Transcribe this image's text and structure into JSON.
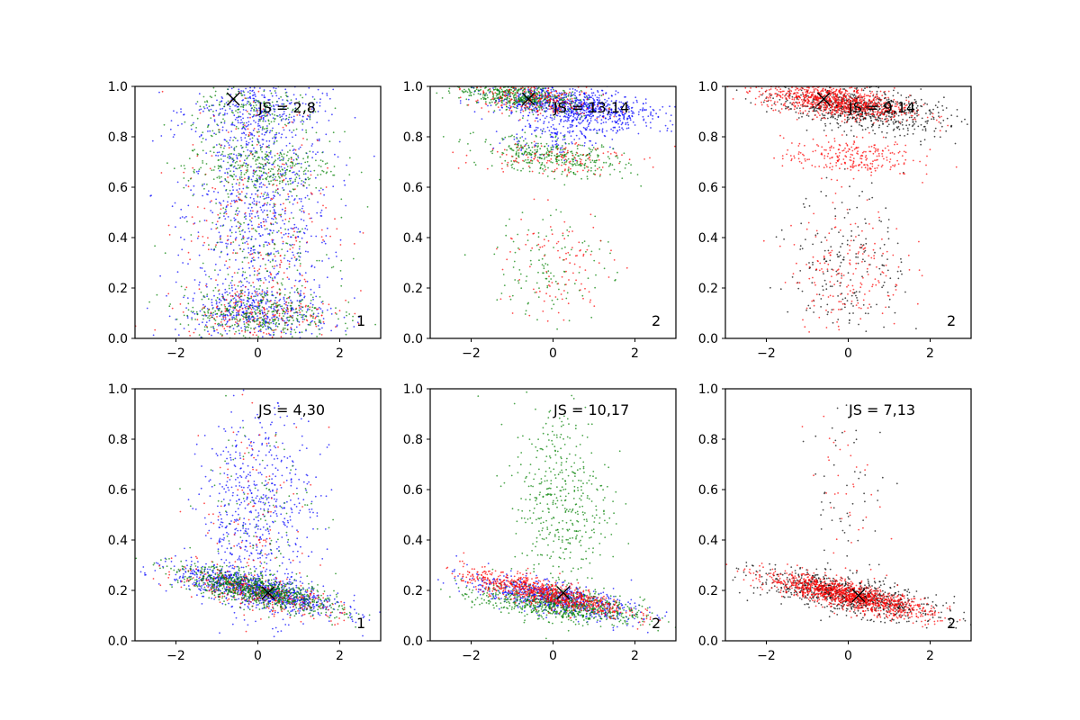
{
  "colors": {
    "blue": "#0000ff",
    "green": "#008000",
    "red": "#ff0000",
    "black": "#000000"
  },
  "chart_data": [
    {
      "type": "scatter",
      "panel_label": "1",
      "annotation": "JS = 2,8",
      "xlim": [
        -3,
        3
      ],
      "ylim": [
        0,
        1
      ],
      "xticks": [
        -2,
        0,
        2
      ],
      "xtick_labels": [
        "−2",
        "0",
        "2"
      ],
      "yticks": [
        0,
        0.2,
        0.4,
        0.6,
        0.8,
        1.0
      ],
      "ytick_labels": [
        "0.0",
        "0.2",
        "0.4",
        "0.6",
        "0.8",
        "1.0"
      ],
      "marker": {
        "x": -0.6,
        "y": 0.95
      },
      "series": [
        {
          "color": "blue",
          "clusters": [
            {
              "cx": 0,
              "cy": 0.5,
              "sx": 0.9,
              "sy": 0.28,
              "slope": 0,
              "n": 900
            },
            {
              "cx": 0,
              "cy": 0.1,
              "sx": 0.9,
              "sy": 0.05,
              "slope": 0,
              "n": 350
            },
            {
              "cx": 0,
              "cy": 0.9,
              "sx": 0.8,
              "sy": 0.06,
              "slope": 0,
              "n": 250
            }
          ]
        },
        {
          "color": "red",
          "clusters": [
            {
              "cx": 0,
              "cy": 0.5,
              "sx": 0.9,
              "sy": 0.3,
              "slope": 0,
              "n": 300
            },
            {
              "cx": 0,
              "cy": 0.1,
              "sx": 0.9,
              "sy": 0.05,
              "slope": 0,
              "n": 200
            }
          ]
        },
        {
          "color": "green",
          "clusters": [
            {
              "cx": 0,
              "cy": 0.68,
              "sx": 0.9,
              "sy": 0.05,
              "slope": 0,
              "n": 300
            },
            {
              "cx": 0,
              "cy": 0.1,
              "sx": 0.9,
              "sy": 0.05,
              "slope": 0,
              "n": 350
            },
            {
              "cx": 0,
              "cy": 0.9,
              "sx": 0.8,
              "sy": 0.06,
              "slope": 0,
              "n": 200
            },
            {
              "cx": 0,
              "cy": 0.4,
              "sx": 0.9,
              "sy": 0.2,
              "slope": 0,
              "n": 250
            }
          ]
        }
      ]
    },
    {
      "type": "scatter",
      "panel_label": "2",
      "annotation": "JS = 13,14",
      "xlim": [
        -3,
        3
      ],
      "ylim": [
        0,
        1
      ],
      "xticks": [
        -2,
        0,
        2
      ],
      "xtick_labels": [
        "−2",
        "0",
        "2"
      ],
      "yticks": [
        0,
        0.2,
        0.4,
        0.6,
        0.8,
        1.0
      ],
      "ytick_labels": [
        "0.0",
        "0.2",
        "0.4",
        "0.6",
        "0.8",
        "1.0"
      ],
      "marker": {
        "x": -0.6,
        "y": 0.95
      },
      "series": [
        {
          "color": "blue",
          "clusters": [
            {
              "cx": 0.5,
              "cy": 0.92,
              "sx": 1.0,
              "sy": 0.035,
              "slope": -0.02,
              "n": 900
            },
            {
              "cx": 0,
              "cy": 0.8,
              "sx": 0.7,
              "sy": 0.04,
              "slope": 0,
              "n": 150
            }
          ]
        },
        {
          "color": "green",
          "clusters": [
            {
              "cx": -0.8,
              "cy": 0.96,
              "sx": 0.8,
              "sy": 0.025,
              "slope": -0.02,
              "n": 500
            },
            {
              "cx": 0,
              "cy": 0.72,
              "sx": 0.9,
              "sy": 0.035,
              "slope": -0.02,
              "n": 350
            },
            {
              "cx": 0,
              "cy": 0.3,
              "sx": 0.7,
              "sy": 0.12,
              "slope": 0,
              "n": 120
            }
          ]
        },
        {
          "color": "red",
          "clusters": [
            {
              "cx": -0.5,
              "cy": 0.95,
              "sx": 0.9,
              "sy": 0.03,
              "slope": -0.02,
              "n": 250
            },
            {
              "cx": 0,
              "cy": 0.72,
              "sx": 0.9,
              "sy": 0.035,
              "slope": 0,
              "n": 120
            },
            {
              "cx": 0,
              "cy": 0.28,
              "sx": 0.7,
              "sy": 0.12,
              "slope": 0,
              "n": 100
            }
          ]
        }
      ]
    },
    {
      "type": "scatter",
      "panel_label": "2",
      "annotation": "JS = 9,14",
      "xlim": [
        -3,
        3
      ],
      "ylim": [
        0,
        1
      ],
      "xticks": [
        -2,
        0,
        2
      ],
      "xtick_labels": [
        "−2",
        "0",
        "2"
      ],
      "yticks": [
        0,
        0.2,
        0.4,
        0.6,
        0.8,
        1.0
      ],
      "ytick_labels": [
        "0.0",
        "0.2",
        "0.4",
        "0.6",
        "0.8",
        "1.0"
      ],
      "marker": {
        "x": -0.6,
        "y": 0.95
      },
      "series": [
        {
          "color": "black",
          "clusters": [
            {
              "cx": 0.3,
              "cy": 0.91,
              "sx": 1.0,
              "sy": 0.04,
              "slope": -0.02,
              "n": 700
            },
            {
              "cx": 0,
              "cy": 0.3,
              "sx": 0.7,
              "sy": 0.15,
              "slope": 0,
              "n": 200
            }
          ]
        },
        {
          "color": "red",
          "clusters": [
            {
              "cx": -0.3,
              "cy": 0.94,
              "sx": 0.9,
              "sy": 0.03,
              "slope": -0.02,
              "n": 900
            },
            {
              "cx": 0,
              "cy": 0.72,
              "sx": 0.8,
              "sy": 0.04,
              "slope": 0,
              "n": 250
            },
            {
              "cx": 0,
              "cy": 0.28,
              "sx": 0.7,
              "sy": 0.12,
              "slope": 0,
              "n": 180
            }
          ]
        }
      ]
    },
    {
      "type": "scatter",
      "panel_label": "1",
      "annotation": "JS = 4,30",
      "xlim": [
        -3,
        3
      ],
      "ylim": [
        0,
        1
      ],
      "xticks": [
        -2,
        0,
        2
      ],
      "xtick_labels": [
        "−2",
        "0",
        "2"
      ],
      "yticks": [
        0,
        0.2,
        0.4,
        0.6,
        0.8,
        1.0
      ],
      "ytick_labels": [
        "0.0",
        "0.2",
        "0.4",
        "0.6",
        "0.8",
        "1.0"
      ],
      "marker": {
        "x": 0.25,
        "y": 0.19
      },
      "series": [
        {
          "color": "blue",
          "clusters": [
            {
              "cx": 0,
              "cy": 0.2,
              "sx": 1.0,
              "sy": 0.03,
              "slope": -0.035,
              "n": 900
            },
            {
              "cx": 0,
              "cy": 0.5,
              "sx": 0.7,
              "sy": 0.2,
              "slope": 0,
              "n": 600
            }
          ]
        },
        {
          "color": "red",
          "clusters": [
            {
              "cx": 0,
              "cy": 0.19,
              "sx": 1.0,
              "sy": 0.03,
              "slope": -0.035,
              "n": 350
            },
            {
              "cx": 0,
              "cy": 0.5,
              "sx": 0.7,
              "sy": 0.2,
              "slope": 0,
              "n": 100
            }
          ]
        },
        {
          "color": "green",
          "clusters": [
            {
              "cx": 0,
              "cy": 0.2,
              "sx": 1.0,
              "sy": 0.03,
              "slope": -0.035,
              "n": 800
            },
            {
              "cx": 0,
              "cy": 0.5,
              "sx": 0.7,
              "sy": 0.2,
              "slope": 0,
              "n": 120
            }
          ]
        }
      ]
    },
    {
      "type": "scatter",
      "panel_label": "2",
      "annotation": "JS = 10,17",
      "xlim": [
        -3,
        3
      ],
      "ylim": [
        0,
        1
      ],
      "xticks": [
        -2,
        0,
        2
      ],
      "xtick_labels": [
        "−2",
        "0",
        "2"
      ],
      "yticks": [
        0,
        0.2,
        0.4,
        0.6,
        0.8,
        1.0
      ],
      "ytick_labels": [
        "0.0",
        "0.2",
        "0.4",
        "0.6",
        "0.8",
        "1.0"
      ],
      "marker": {
        "x": 0.25,
        "y": 0.19
      },
      "series": [
        {
          "color": "blue",
          "clusters": [
            {
              "cx": 0,
              "cy": 0.17,
              "sx": 1.0,
              "sy": 0.03,
              "slope": -0.03,
              "n": 700
            }
          ]
        },
        {
          "color": "green",
          "clusters": [
            {
              "cx": 0.2,
              "cy": 0.14,
              "sx": 1.0,
              "sy": 0.03,
              "slope": -0.02,
              "n": 700
            },
            {
              "cx": 0.2,
              "cy": 0.55,
              "sx": 0.6,
              "sy": 0.2,
              "slope": 0,
              "n": 450
            }
          ]
        },
        {
          "color": "red",
          "clusters": [
            {
              "cx": -0.2,
              "cy": 0.19,
              "sx": 1.0,
              "sy": 0.025,
              "slope": -0.035,
              "n": 800
            }
          ]
        }
      ]
    },
    {
      "type": "scatter",
      "panel_label": "2",
      "annotation": "JS = 7,13",
      "xlim": [
        -3,
        3
      ],
      "ylim": [
        0,
        1
      ],
      "xticks": [
        -2,
        0,
        2
      ],
      "xtick_labels": [
        "−2",
        "0",
        "2"
      ],
      "yticks": [
        0,
        0.2,
        0.4,
        0.6,
        0.8,
        1.0
      ],
      "ytick_labels": [
        "0.0",
        "0.2",
        "0.4",
        "0.6",
        "0.8",
        "1.0"
      ],
      "marker": {
        "x": 0.25,
        "y": 0.18
      },
      "series": [
        {
          "color": "black",
          "clusters": [
            {
              "cx": 0,
              "cy": 0.18,
              "sx": 1.1,
              "sy": 0.035,
              "slope": -0.03,
              "n": 800
            },
            {
              "cx": 0,
              "cy": 0.55,
              "sx": 0.5,
              "sy": 0.2,
              "slope": 0,
              "n": 60
            }
          ]
        },
        {
          "color": "red",
          "clusters": [
            {
              "cx": 0,
              "cy": 0.18,
              "sx": 1.0,
              "sy": 0.025,
              "slope": -0.035,
              "n": 1200
            },
            {
              "cx": 0,
              "cy": 0.55,
              "sx": 0.5,
              "sy": 0.2,
              "slope": 0,
              "n": 50
            }
          ]
        }
      ]
    }
  ]
}
